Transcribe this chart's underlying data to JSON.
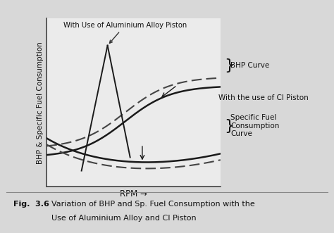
{
  "xlabel": "RPM →",
  "ylabel": "BHP & Specific Fuel Consumption",
  "fig_bold": "Fig.  3.6",
  "fig_normal": "    Variation of BHP and Sp. Fuel Consumption with the\n              Use of Aluminium Alloy and CI Piston",
  "annotation_al": "With Use of Aluminium Alloy Piston",
  "annotation_ci": "With the use of CI Piston",
  "annotation_bhp": "BHP Curve",
  "annotation_sfc": "Specific Fuel\nConsumption\nCurve",
  "bg_color": "#d8d8d8",
  "plot_bg": "#ebebeb",
  "curve_color": "#1a1a1a",
  "dashed_color": "#444444"
}
